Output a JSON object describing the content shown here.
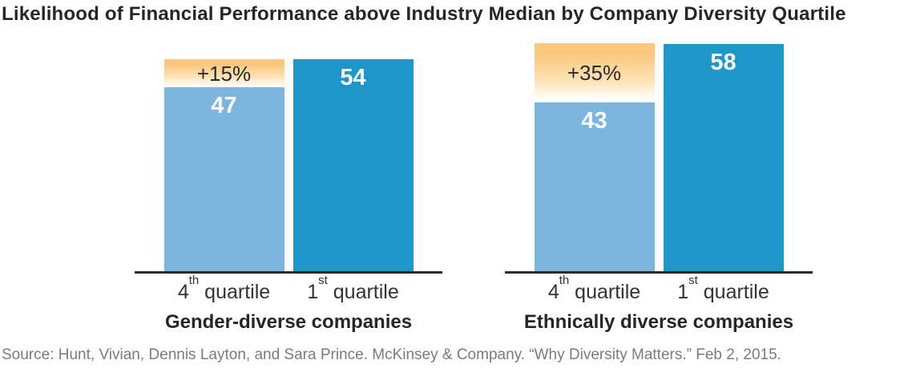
{
  "title": "Likelihood of Financial Performance above Industry Median by Company Diversity Quartile",
  "source": "Source: Hunt, Vivian, Dennis Layton, and Sara Prince. McKinsey & Company. “Why Diversity Matters.” Feb 2, 2015.",
  "colors": {
    "light_blue": "#7CB5DE",
    "dark_blue": "#1E96C8",
    "orange_top": "#F9C87E",
    "axis": "#2B2B2B",
    "title_text": "#262626",
    "category_text": "#333333",
    "value_text": "#FFFFFF",
    "delta_text": "#2B2B2B",
    "source_text": "#7B7B7B"
  },
  "chart_data": [
    {
      "type": "bar",
      "group_label": "Gender-diverse companies",
      "categories": [
        "4th quartile",
        "1st quartile"
      ],
      "categories_fmt": [
        {
          "base": "4",
          "sup": "th",
          "rest": " quartile"
        },
        {
          "base": "1",
          "sup": "st",
          "rest": " quartile"
        }
      ],
      "values": [
        47,
        54
      ],
      "delta_label": "+15%",
      "delta_on": "4th quartile",
      "ylim": [
        0,
        58
      ],
      "grid": false,
      "legend": false
    },
    {
      "type": "bar",
      "group_label": "Ethnically diverse companies",
      "categories": [
        "4th quartile",
        "1st quartile"
      ],
      "categories_fmt": [
        {
          "base": "4",
          "sup": "th",
          "rest": " quartile"
        },
        {
          "base": "1",
          "sup": "st",
          "rest": " quartile"
        }
      ],
      "values": [
        43,
        58
      ],
      "delta_label": "+35%",
      "delta_on": "4th quartile",
      "ylim": [
        0,
        58
      ],
      "grid": false,
      "legend": false
    }
  ]
}
